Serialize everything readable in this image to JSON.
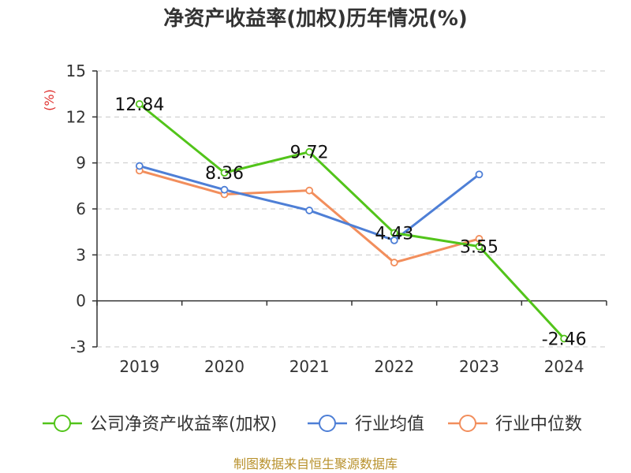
{
  "chart_data": {
    "type": "line",
    "title": "净资产收益率(加权)历年情况(%)",
    "ylabel": "(%)",
    "categories": [
      "2019",
      "2020",
      "2021",
      "2022",
      "2023",
      "2024"
    ],
    "y_ticks": [
      "15",
      "12",
      "9",
      "6",
      "3",
      "0",
      "-3"
    ],
    "ylim": [
      -3,
      15
    ],
    "grid": true,
    "legend_position": "bottom",
    "series": [
      {
        "name": "公司净资产收益率(加权)",
        "color": "#52c41a",
        "values": [
          12.84,
          8.36,
          9.72,
          4.43,
          3.55,
          -2.46
        ],
        "labels": [
          "12.84",
          "8.36",
          "9.72",
          "4.43",
          "3.55",
          "-2.46"
        ]
      },
      {
        "name": "行业均值",
        "color": "#4e7fd6",
        "values": [
          8.8,
          7.25,
          5.9,
          3.95,
          8.25,
          null
        ]
      },
      {
        "name": "行业中位数",
        "color": "#f28e5c",
        "values": [
          8.5,
          6.95,
          7.2,
          2.5,
          4.05,
          null
        ]
      }
    ]
  },
  "source": "制图数据来自恒生聚源数据库"
}
